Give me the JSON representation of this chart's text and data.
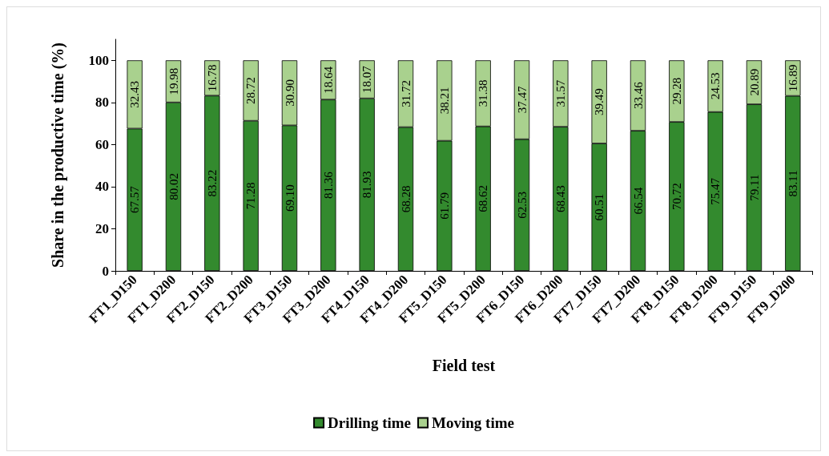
{
  "chart_data": {
    "type": "bar",
    "stacked": true,
    "xlabel": "Field test",
    "ylabel": "Share in the productive time (%)",
    "categories": [
      "FT1_D150",
      "FT1_D200",
      "FT2_D150",
      "FT2_D200",
      "FT3_D150",
      "FT3_D200",
      "FT4_D150",
      "FT4_D200",
      "FT5_D150",
      "FT5_D200",
      "FT6_D150",
      "FT6_D200",
      "FT7_D150",
      "FT7_D200",
      "FT8_D150",
      "FT8_D200",
      "FT9_D150",
      "FT9_D200"
    ],
    "series": [
      {
        "name": "Drilling time",
        "color": "#338a2e",
        "values": [
          67.57,
          80.02,
          83.22,
          71.28,
          69.1,
          81.36,
          81.93,
          68.28,
          61.79,
          68.62,
          62.53,
          68.43,
          60.51,
          66.54,
          70.72,
          75.47,
          79.11,
          83.11
        ],
        "value_labels": [
          "67.57",
          "80.02",
          "83.22",
          "71.28",
          "69.10",
          "81.36",
          "81.93",
          "68.28",
          "61.79",
          "68.62",
          "62.53",
          "68.43",
          "60.51",
          "66.54",
          "70.72",
          "75.47",
          "79.11",
          "83.11"
        ]
      },
      {
        "name": "Moving time",
        "color": "#a9d18e",
        "values": [
          32.43,
          19.98,
          16.78,
          28.72,
          30.9,
          18.64,
          18.07,
          31.72,
          38.21,
          31.38,
          37.47,
          31.57,
          39.49,
          33.46,
          29.28,
          24.53,
          20.89,
          16.89
        ],
        "value_labels": [
          "32.43",
          "19.98",
          "16.78",
          "28.72",
          "30.90",
          "18.64",
          "18.07",
          "31.72",
          "38.21",
          "31.38",
          "37.47",
          "31.57",
          "39.49",
          "33.46",
          "29.28",
          "24.53",
          "20.89",
          "16.89"
        ]
      }
    ],
    "ylim": [
      0,
      110
    ],
    "yticks": [
      0,
      20,
      40,
      60,
      80,
      100
    ],
    "grid": false,
    "legend": "bottom"
  }
}
